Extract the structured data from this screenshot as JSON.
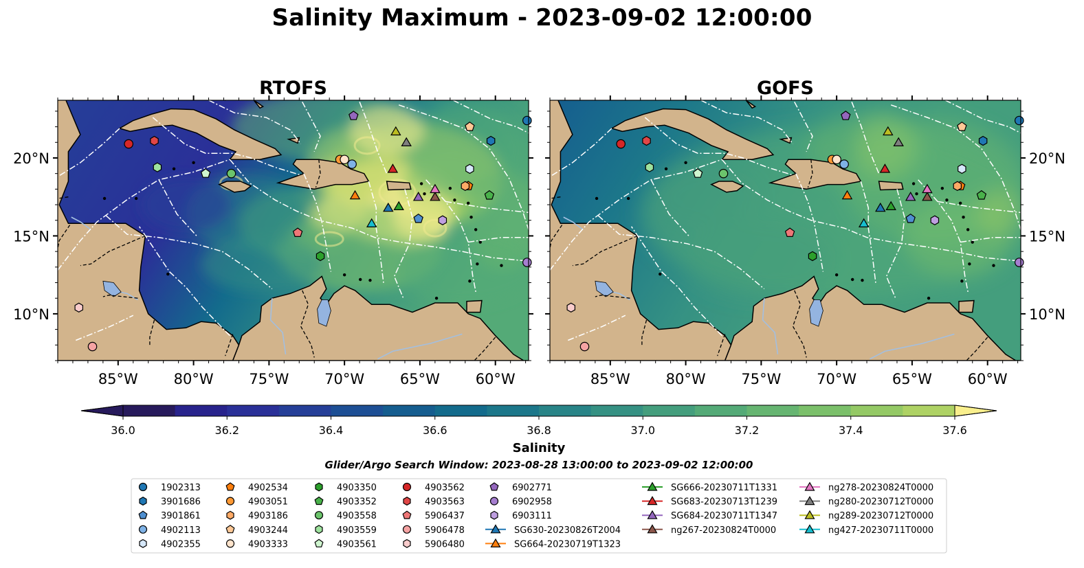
{
  "figure": {
    "title": "Salinity Maximum - 2023-09-02 12:00:00",
    "search_window": "Glider/Argo Search Window: 2023-08-28 13:00:00 to 2023-09-02 12:00:00"
  },
  "colors": {
    "land": "#d2b48c",
    "water_lines": "#a3bfe0",
    "boundary": "#ffffff",
    "colormap": [
      "#271a5c",
      "#28238c",
      "#2a3098",
      "#253f98",
      "#1d4f95",
      "#155d8f",
      "#136b8c",
      "#1c778a",
      "#288487",
      "#359183",
      "#449e7d",
      "#54aa77",
      "#66b571",
      "#7bc06a",
      "#94c965",
      "#aed264",
      "#c7d96d",
      "#dde27e",
      "#f0e98f",
      "#f9ef8d"
    ]
  },
  "chart_data": [
    {
      "type": "heatmap",
      "title": "RTOFS",
      "variable": "Salinity",
      "xlim": [
        -89.0,
        -57.8
      ],
      "ylim": [
        7.0,
        23.7
      ],
      "x_ticks": [
        -85,
        -80,
        -75,
        -70,
        -65,
        -60
      ],
      "x_tick_labels": [
        "85°W",
        "80°W",
        "75°W",
        "70°W",
        "65°W",
        "60°W"
      ],
      "y_ticks": [
        10,
        15,
        20
      ],
      "y_tick_labels": [
        "10°N",
        "15°N",
        "20°N"
      ],
      "y_axis_side": "left",
      "field_pattern": "high salinity (37.0–37.6) in northeast Caribbean near Puerto Rico and Lesser Antilles; low salinity (36.0–36.3) in southwest Caribbean and Gulf of Honduras"
    },
    {
      "type": "heatmap",
      "title": "GOFS",
      "variable": "Salinity",
      "xlim": [
        -89.0,
        -57.8
      ],
      "ylim": [
        7.0,
        23.7
      ],
      "x_ticks": [
        -85,
        -80,
        -75,
        -70,
        -65,
        -60
      ],
      "x_tick_labels": [
        "85°W",
        "80°W",
        "75°W",
        "70°W",
        "65°W",
        "60°W"
      ],
      "y_ticks": [
        10,
        15,
        20
      ],
      "y_tick_labels": [
        "10°N",
        "15°N",
        "20°N"
      ],
      "y_axis_side": "right",
      "field_pattern": "smoother field, mostly 36.8–37.2 across the Caribbean, low values (36.0–36.3) near the Nicaragua coast and Gulf of Honduras"
    }
  ],
  "colorbar": {
    "label": "Salinity",
    "vmin": 36.0,
    "vmax": 37.6,
    "step": 0.1,
    "ticks": [
      36.0,
      36.2,
      36.4,
      36.6,
      36.8,
      37.0,
      37.2,
      37.4,
      37.6
    ],
    "tick_labels": [
      "36.0",
      "36.2",
      "36.4",
      "36.6",
      "36.8",
      "37.0",
      "37.2",
      "37.4",
      "37.6"
    ],
    "extend": "both"
  },
  "platforms": [
    {
      "id": "1902313",
      "marker": "circle",
      "color": "#1f77b4",
      "lon": -57.9,
      "lat": 22.4
    },
    {
      "id": "3901686",
      "marker": "hexagon",
      "color": "#1f77b4",
      "lon": -60.3,
      "lat": 21.1
    },
    {
      "id": "3901861",
      "marker": "pentagon",
      "color": "#4f8fd0",
      "lon": -65.1,
      "lat": 16.1
    },
    {
      "id": "4902113",
      "marker": "circle",
      "color": "#7fb2e6",
      "lon": -69.5,
      "lat": 19.6
    },
    {
      "id": "4902355",
      "marker": "hexagon",
      "color": "#d6e8fa",
      "lon": -61.7,
      "lat": 19.3
    },
    {
      "id": "4902534",
      "marker": "pentagon",
      "color": "#ff7f0e",
      "lon": -61.8,
      "lat": 18.2
    },
    {
      "id": "4903051",
      "marker": "circle",
      "color": "#ff9a35",
      "lon": -70.3,
      "lat": 19.9
    },
    {
      "id": "4903186",
      "marker": "hexagon",
      "color": "#ffaa66",
      "lon": -62.0,
      "lat": 18.2
    },
    {
      "id": "4903244",
      "marker": "pentagon",
      "color": "#ffc896",
      "lon": -61.7,
      "lat": 22.0
    },
    {
      "id": "4903333",
      "marker": "circle",
      "color": "#ffe4cc",
      "lon": -70.0,
      "lat": 19.9
    },
    {
      "id": "4903350",
      "marker": "hexagon",
      "color": "#2ca02c",
      "lon": -71.6,
      "lat": 13.7
    },
    {
      "id": "4903352",
      "marker": "pentagon",
      "color": "#49b14a",
      "lon": -60.4,
      "lat": 17.6
    },
    {
      "id": "4903558",
      "marker": "circle",
      "color": "#6cc46c",
      "lon": -77.5,
      "lat": 19.0
    },
    {
      "id": "4903559",
      "marker": "hexagon",
      "color": "#9ee29e",
      "lon": -82.4,
      "lat": 19.4
    },
    {
      "id": "4903561",
      "marker": "pentagon",
      "color": "#cff5cf",
      "lon": -79.2,
      "lat": 19.0
    },
    {
      "id": "4903562",
      "marker": "circle",
      "color": "#d62728",
      "lon": -84.3,
      "lat": 20.9
    },
    {
      "id": "4903563",
      "marker": "hexagon",
      "color": "#e04646",
      "lon": -82.6,
      "lat": 21.1
    },
    {
      "id": "5906437",
      "marker": "pentagon",
      "color": "#ee7777",
      "lon": -73.1,
      "lat": 15.2
    },
    {
      "id": "5906478",
      "marker": "circle",
      "color": "#f5a3a3",
      "lon": -86.7,
      "lat": 7.9
    },
    {
      "id": "5906480",
      "marker": "hexagon",
      "color": "#f9cccc",
      "lon": -87.6,
      "lat": 10.4
    },
    {
      "id": "6902771",
      "marker": "pentagon",
      "color": "#9467bd",
      "lon": -69.4,
      "lat": 22.7
    },
    {
      "id": "6902958",
      "marker": "circle",
      "color": "#a67ed0",
      "lon": -57.9,
      "lat": 13.3
    },
    {
      "id": "6903111",
      "marker": "hexagon",
      "color": "#bf9fe0",
      "lon": -63.5,
      "lat": 16.0
    },
    {
      "id": "SG630-20230826T2004",
      "marker": "triangle",
      "color": "#1f77b4",
      "lon": -67.1,
      "lat": 16.8
    },
    {
      "id": "SG664-20230719T1323",
      "marker": "triangle",
      "color": "#ff7f0e",
      "lon": -69.3,
      "lat": 17.6
    },
    {
      "id": "SG666-20230711T1331",
      "marker": "triangle",
      "color": "#2ca02c",
      "lon": -66.4,
      "lat": 16.9
    },
    {
      "id": "SG683-20230713T1239",
      "marker": "triangle",
      "color": "#d62728",
      "lon": -66.8,
      "lat": 19.3
    },
    {
      "id": "SG684-20230711T1347",
      "marker": "triangle",
      "color": "#9467bd",
      "lon": -65.1,
      "lat": 17.5
    },
    {
      "id": "ng267-20230824T0000",
      "marker": "triangle",
      "color": "#8c564b",
      "lon": -64.0,
      "lat": 17.5
    },
    {
      "id": "ng278-20230824T0000",
      "marker": "triangle",
      "color": "#e377c2",
      "lon": -64.0,
      "lat": 18.0
    },
    {
      "id": "ng280-20230712T0000",
      "marker": "triangle",
      "color": "#7f7f7f",
      "lon": -65.9,
      "lat": 21.0
    },
    {
      "id": "ng289-20230712T0000",
      "marker": "triangle",
      "color": "#bcbd22",
      "lon": -66.6,
      "lat": 21.7
    },
    {
      "id": "ng427-20230711T0000",
      "marker": "triangle",
      "color": "#17becf",
      "lon": -68.2,
      "lat": 15.8
    }
  ]
}
